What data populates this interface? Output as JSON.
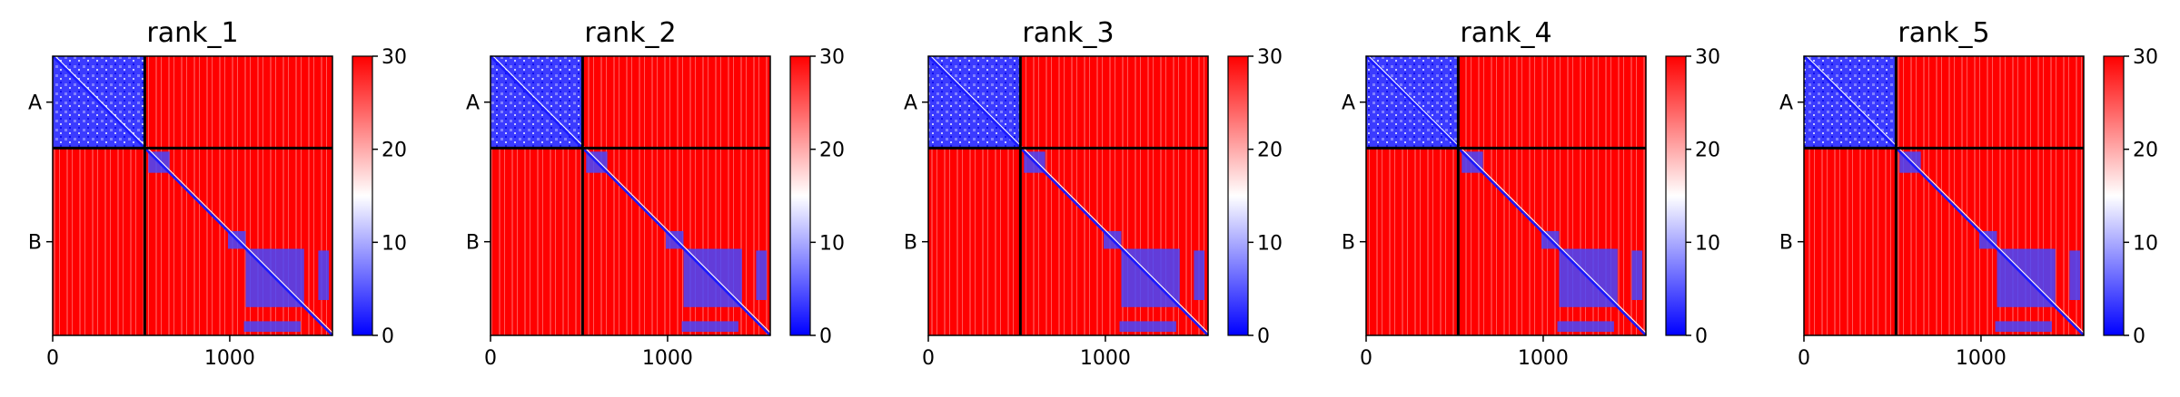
{
  "chart_data": {
    "type": "heatmap",
    "description_units": "residue index",
    "colorbar": {
      "min": 0,
      "max": 30,
      "ticks": [
        0,
        10,
        20,
        30
      ],
      "colors": [
        "#0000ff",
        "#ffffff",
        "#ff0000"
      ]
    },
    "x_ticks": [
      0,
      1000
    ],
    "x_range": [
      0,
      1580
    ],
    "y_range": [
      0,
      1580
    ],
    "chain_boundaries": [
      520
    ],
    "chain_labels": [
      "A",
      "B"
    ],
    "chain_label_positions": [
      260,
      1050
    ],
    "low_value_blocks": [
      [
        0,
        520,
        0,
        520
      ],
      [
        540,
        660,
        540,
        660
      ],
      [
        990,
        1090,
        990,
        1090
      ],
      [
        1090,
        1420,
        1090,
        1420
      ],
      [
        1500,
        1560,
        1100,
        1380
      ],
      [
        1080,
        1400,
        1500,
        1560
      ]
    ],
    "panels": [
      {
        "title": "rank_1"
      },
      {
        "title": "rank_2"
      },
      {
        "title": "rank_3"
      },
      {
        "title": "rank_4"
      },
      {
        "title": "rank_5"
      }
    ]
  }
}
